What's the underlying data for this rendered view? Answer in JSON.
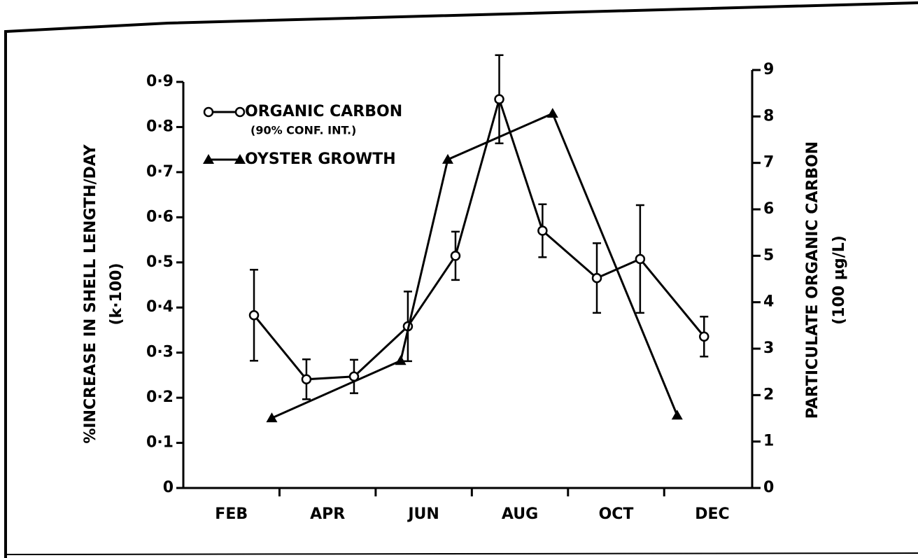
{
  "chart_data": {
    "type": "line",
    "ylabel": "%INCREASE IN SHELL LENGTH/DAY",
    "ylabel_sub": "(k·100)",
    "y2label": "PARTICULATE ORGANIC CARBON",
    "y2label_sub": "(100 µg/L)",
    "xlim": [
      1,
      12.83
    ],
    "xticks": [
      {
        "value": 2,
        "label": "FEB"
      },
      {
        "value": 4,
        "label": "APR"
      },
      {
        "value": 6,
        "label": "JUN"
      },
      {
        "value": 8,
        "label": "AUG"
      },
      {
        "value": 10,
        "label": "OCT"
      },
      {
        "value": 12,
        "label": "DEC"
      }
    ],
    "xminorticks": [
      3,
      5,
      7,
      9,
      11
    ],
    "ylim": [
      0,
      0.9
    ],
    "yticks": [
      0,
      {
        "value": 0.1,
        "label": "0·1"
      },
      {
        "value": 0.2,
        "label": "0·2"
      },
      {
        "value": 0.3,
        "label": "0·3"
      },
      {
        "value": 0.4,
        "label": "0·4"
      },
      {
        "value": 0.5,
        "label": "0·5"
      },
      {
        "value": 0.6,
        "label": "0·6"
      },
      {
        "value": 0.7,
        "label": "0·7"
      },
      {
        "value": 0.8,
        "label": "0·8"
      },
      {
        "value": 0.9,
        "label": "0·9"
      }
    ],
    "y2lim": [
      0,
      9
    ],
    "y2ticks": [
      0,
      1,
      2,
      3,
      4,
      5,
      6,
      7,
      8,
      9
    ],
    "legend": "upper left",
    "series": [
      {
        "name": "ORGANIC CARBON",
        "note": "(90% CONF. INT.)",
        "axis": "y2",
        "marker": "circle",
        "color": "#000000",
        "x": [
          2.47,
          3.56,
          4.55,
          5.67,
          6.66,
          7.57,
          8.47,
          9.6,
          10.5,
          11.83
        ],
        "values": [
          3.72,
          2.34,
          2.4,
          3.48,
          5.0,
          8.37,
          5.54,
          4.52,
          4.93,
          3.26
        ],
        "errors": [
          0.98,
          0.43,
          0.36,
          0.75,
          0.52,
          0.95,
          0.57,
          0.75,
          1.16,
          0.43
        ]
      },
      {
        "name": "OYSTER GROWTH",
        "axis": "y",
        "marker": "triangle",
        "color": "#000000",
        "x": [
          2.84,
          5.52,
          6.5,
          8.68,
          11.27
        ],
        "values": [
          0.155,
          0.282,
          0.728,
          0.83,
          0.161
        ]
      }
    ]
  }
}
